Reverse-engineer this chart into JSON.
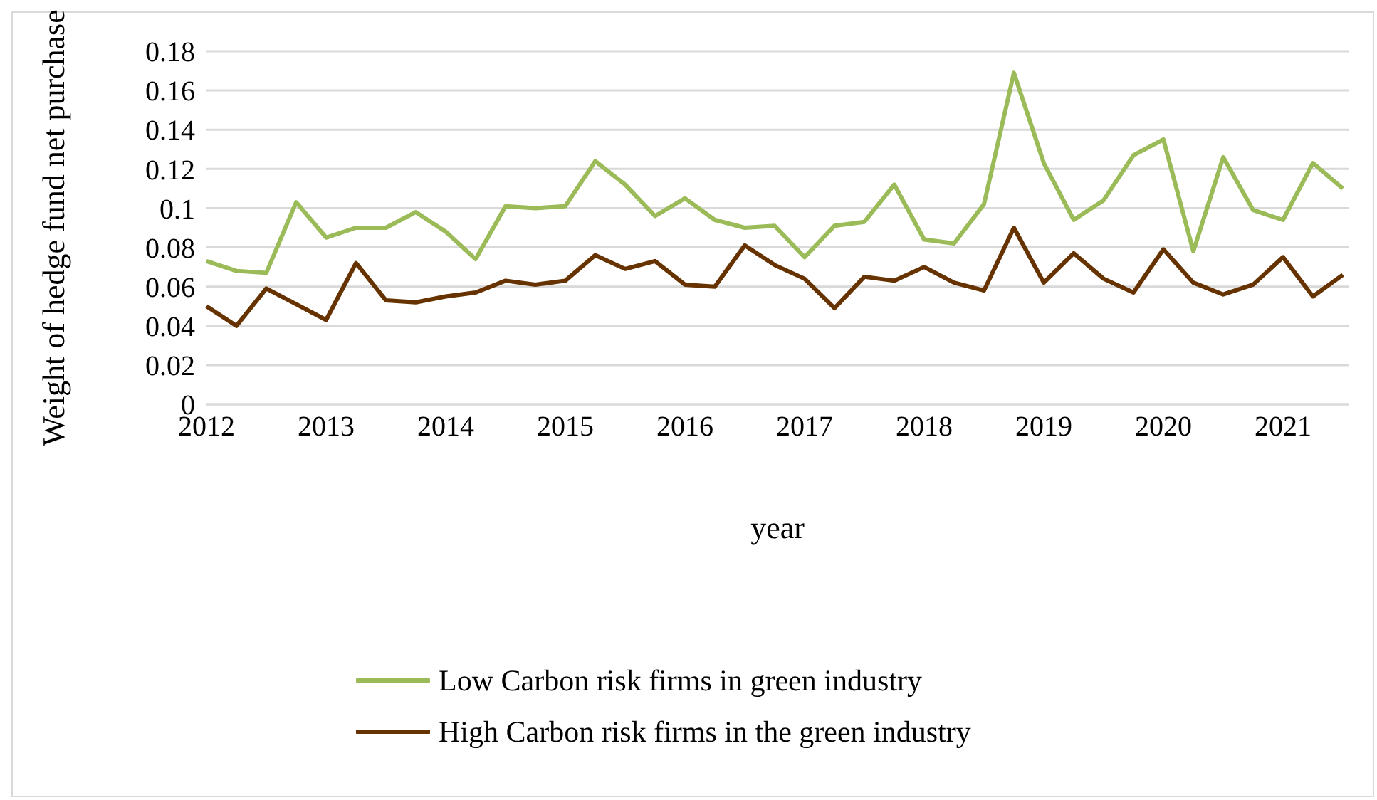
{
  "chart_data": {
    "type": "line",
    "xlabel": "year",
    "ylabel": "Weight of hedge fund net purchase",
    "categories": [
      "2012",
      null,
      null,
      null,
      "2013",
      null,
      null,
      null,
      "2014",
      null,
      null,
      null,
      "2015",
      null,
      null,
      null,
      "2016",
      null,
      null,
      null,
      "2017",
      null,
      null,
      null,
      "2018",
      null,
      null,
      null,
      "2019",
      null,
      null,
      null,
      "2020",
      null,
      null,
      null,
      "2021",
      null,
      null
    ],
    "series": [
      {
        "name": "Low Carbon risk firms in green industry",
        "color": "#9bbb59",
        "values": [
          0.073,
          0.068,
          0.067,
          0.103,
          0.085,
          0.09,
          0.09,
          0.098,
          0.088,
          0.074,
          0.101,
          0.1,
          0.101,
          0.124,
          0.112,
          0.096,
          0.105,
          0.094,
          0.09,
          0.091,
          0.075,
          0.091,
          0.093,
          0.112,
          0.084,
          0.082,
          0.102,
          0.169,
          0.123,
          0.094,
          0.104,
          0.127,
          0.135,
          0.078,
          0.126,
          0.099,
          0.094,
          0.123,
          0.11
        ]
      },
      {
        "name": "High Carbon risk firms in the green industry",
        "color": "#663300",
        "values": [
          0.05,
          0.04,
          0.059,
          0.051,
          0.043,
          0.072,
          0.053,
          0.052,
          0.055,
          0.057,
          0.063,
          0.061,
          0.063,
          0.076,
          0.069,
          0.073,
          0.061,
          0.06,
          0.081,
          0.071,
          0.064,
          0.049,
          0.065,
          0.063,
          0.07,
          0.062,
          0.058,
          0.09,
          0.062,
          0.077,
          0.064,
          0.057,
          0.079,
          0.062,
          0.056,
          0.061,
          0.075,
          0.055,
          0.066
        ]
      }
    ],
    "ylim": [
      0,
      0.18
    ],
    "yticks": [
      0,
      0.02,
      0.04,
      0.06,
      0.08,
      0.1,
      0.12,
      0.14,
      0.16,
      0.18
    ],
    "grid": "y",
    "legend": "bottom",
    "marker": "none",
    "line_style": "solid"
  }
}
